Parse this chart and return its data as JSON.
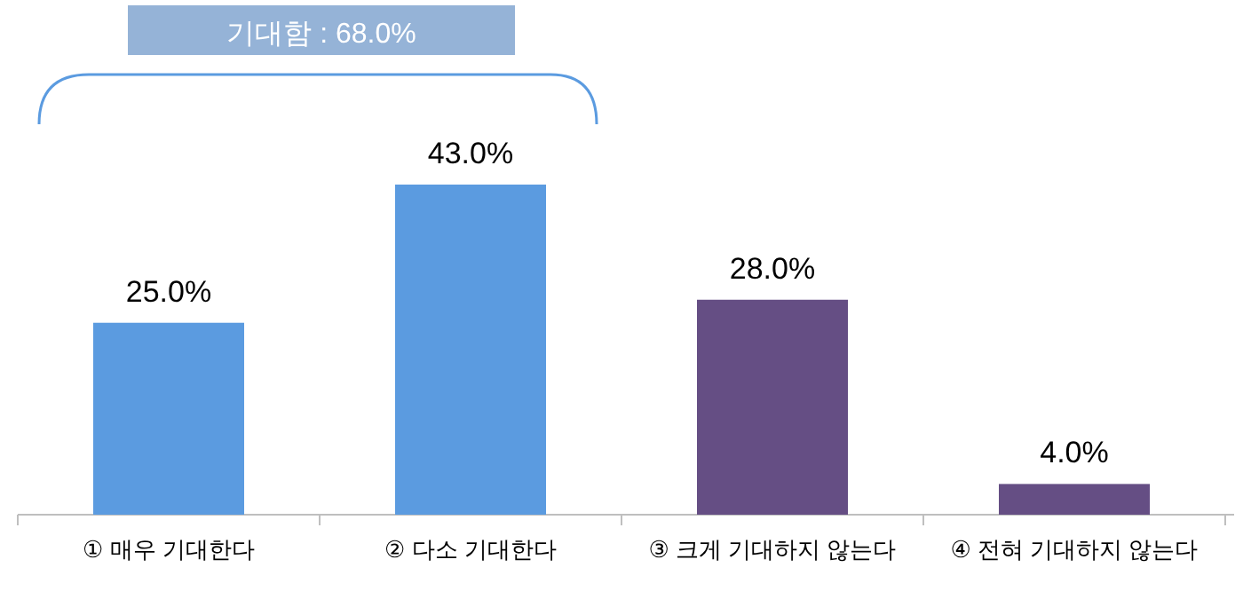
{
  "chart_data": {
    "type": "bar",
    "categories": [
      "① 매우 기대한다",
      "② 다소 기대한다",
      "③ 크게 기대하지 않는다",
      "④ 전혀 기대하지 않는다"
    ],
    "values": [
      25.0,
      43.0,
      28.0,
      4.0
    ],
    "colors": [
      "#5b9be0",
      "#5b9be0",
      "#654e84",
      "#654e84"
    ],
    "value_labels": [
      "25.0%",
      "43.0%",
      "28.0%",
      "4.0%"
    ],
    "annotations": [
      "기대함 : 68.0%"
    ]
  }
}
